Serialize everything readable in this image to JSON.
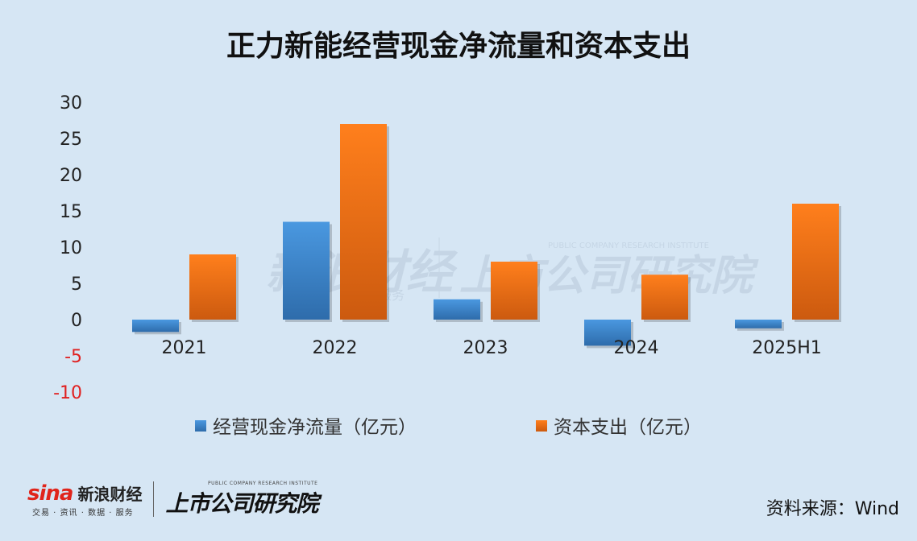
{
  "footer": {
    "source": "资料来源：Wind",
    "sina_logo": {
      "mark": "sina",
      "name": "新浪财经",
      "sub": "交易 · 资讯 · 数据 · 服务"
    },
    "ssgs_logo": {
      "name": "上市公司研究院",
      "english": "PUBLIC COMPANY RESEARCH INSTITUTE"
    },
    "watermark": {
      "sina_name": "新浪财经",
      "sina_sub": "服务",
      "ssgs_name": "上市公司研究院",
      "ssgs_english": "PUBLIC COMPANY RESEARCH INSTITUTE"
    }
  },
  "chart_data": {
    "type": "bar",
    "title": "正力新能经营现金净流量和资本支出",
    "categories": [
      "2021",
      "2022",
      "2023",
      "2024",
      "2025H1"
    ],
    "series": [
      {
        "name": "经营现金净流量（亿元）",
        "values": [
          -1.7,
          13.5,
          2.8,
          -3.6,
          -1.2
        ],
        "color": "#3f86c8"
      },
      {
        "name": "资本支出（亿元）",
        "values": [
          9.0,
          27.0,
          8.0,
          6.2,
          16.0
        ],
        "color": "#f0741c"
      }
    ],
    "ylim": [
      -10,
      30
    ],
    "yticks": [
      30,
      25,
      20,
      15,
      10,
      5,
      0,
      -5,
      -10
    ],
    "negative_tick_color": "#e02020",
    "grid": false,
    "legend_position": "bottom"
  }
}
